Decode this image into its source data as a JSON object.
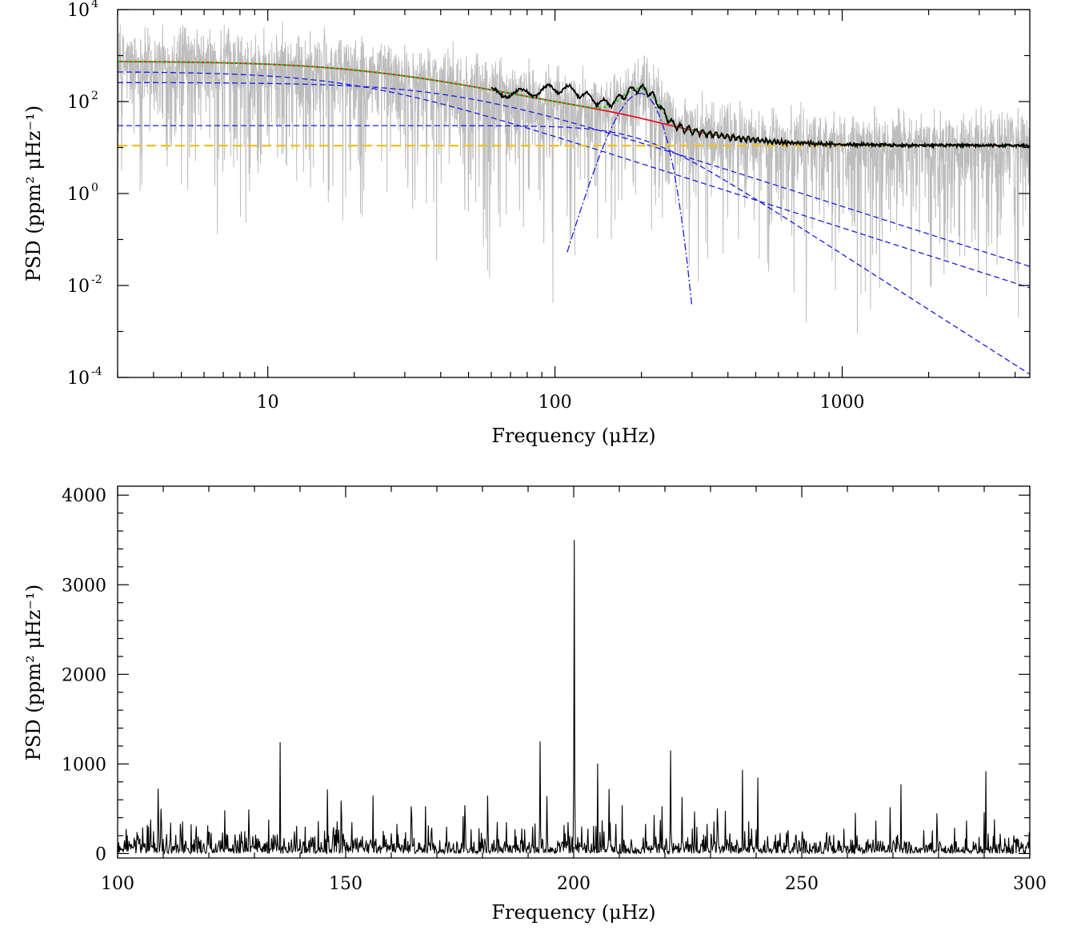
{
  "chart_data": [
    {
      "type": "line",
      "xscale": "log",
      "yscale": "log",
      "xlim": [
        3,
        4500
      ],
      "ylim": [
        0.0001,
        10000
      ],
      "xlabel": "Frequency (μHz)",
      "ylabel": "PSD (ppm² μHz⁻¹)",
      "xticks": [
        {
          "value": 10,
          "label": "10"
        },
        {
          "value": 100,
          "label": "100"
        },
        {
          "value": 1000,
          "label": "1000"
        }
      ],
      "yticks": [
        {
          "value": 10000,
          "base": "10",
          "exp": "4"
        },
        {
          "value": 100,
          "base": "10",
          "exp": "2"
        },
        {
          "value": 1,
          "base": "10",
          "exp": "0"
        },
        {
          "value": 0.01,
          "base": "10",
          "exp": "-2"
        },
        {
          "value": 0.0001,
          "base": "10",
          "exp": "-4"
        }
      ],
      "model": {
        "white_noise": 11,
        "harvey_components": [
          {
            "amplitude": 450,
            "tau_freq": 20,
            "exponent": 2
          },
          {
            "amplitude": 260,
            "tau_freq": 45,
            "exponent": 2
          },
          {
            "amplitude": 30,
            "tau_freq": 200,
            "exponent": 4
          }
        ],
        "gaussian": {
          "height": 150,
          "numax": 198,
          "sigma": 22
        }
      },
      "series": [
        {
          "color": "#bdbdbd",
          "style": "solid"
        },
        {
          "color": "#000000",
          "style": "solid"
        },
        {
          "color": "#e8141c",
          "style": "solid"
        },
        {
          "color": "#22cc22",
          "style": "dotted"
        },
        {
          "color": "#1a1ae6",
          "style": "dashed"
        },
        {
          "color": "#1a1ae6",
          "style": "dashdot"
        },
        {
          "color": "#f2c21b",
          "style": "dashed"
        }
      ]
    },
    {
      "type": "line",
      "xlim": [
        100,
        300
      ],
      "ylim": [
        -50,
        4100
      ],
      "xlabel": "Frequency (μHz)",
      "ylabel": "PSD (ppm² μHz⁻¹)",
      "xticks": [
        100,
        150,
        200,
        250,
        300
      ],
      "yticks": [
        0,
        1000,
        2000,
        3000,
        4000
      ],
      "peaks": [
        {
          "x": 200.1,
          "y": 3500
        },
        {
          "x": 192.6,
          "y": 1250
        },
        {
          "x": 221.3,
          "y": 1150
        },
        {
          "x": 207.8,
          "y": 720
        },
        {
          "x": 223.8,
          "y": 630
        },
        {
          "x": 109.5,
          "y": 500
        },
        {
          "x": 206.2,
          "y": 370
        },
        {
          "x": 209.2,
          "y": 330
        },
        {
          "x": 217.6,
          "y": 430
        },
        {
          "x": 215.8,
          "y": 330
        },
        {
          "x": 230.8,
          "y": 360
        },
        {
          "x": 229.2,
          "y": 330
        },
        {
          "x": 176.3,
          "y": 360
        },
        {
          "x": 185.3,
          "y": 350
        },
        {
          "x": 191.0,
          "y": 300
        },
        {
          "x": 198.8,
          "y": 350
        },
        {
          "x": 161.2,
          "y": 330
        },
        {
          "x": 107.2,
          "y": 380
        },
        {
          "x": 276.7,
          "y": 260
        },
        {
          "x": 247.0,
          "y": 260
        },
        {
          "x": 240.0,
          "y": 270
        },
        {
          "x": 237.5,
          "y": 250
        },
        {
          "x": 255.5,
          "y": 240
        },
        {
          "x": 120.5,
          "y": 230
        },
        {
          "x": 104.3,
          "y": 240
        },
        {
          "x": 130.2,
          "y": 210
        },
        {
          "x": 201.8,
          "y": 300
        }
      ]
    }
  ]
}
